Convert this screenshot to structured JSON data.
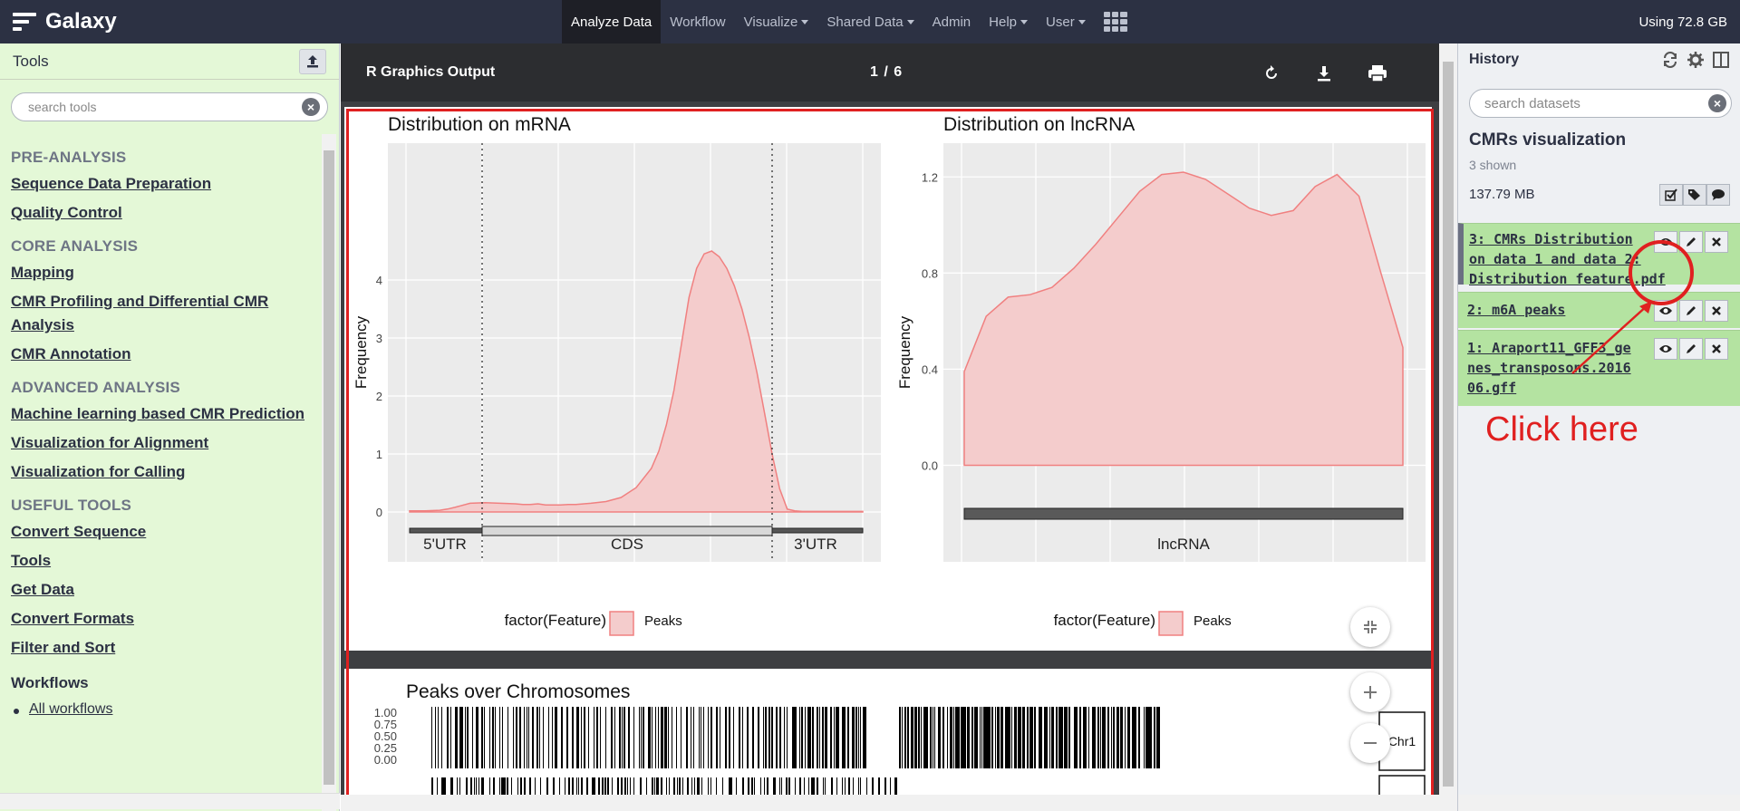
{
  "masthead": {
    "brand": "Galaxy",
    "nav": [
      {
        "label": "Analyze Data",
        "active": true,
        "dropdown": false
      },
      {
        "label": "Workflow",
        "active": false,
        "dropdown": false
      },
      {
        "label": "Visualize",
        "active": false,
        "dropdown": true
      },
      {
        "label": "Shared Data",
        "active": false,
        "dropdown": true
      },
      {
        "label": "Admin",
        "active": false,
        "dropdown": false
      },
      {
        "label": "Help",
        "active": false,
        "dropdown": true
      },
      {
        "label": "User",
        "active": false,
        "dropdown": true
      }
    ],
    "quota": "Using 72.8 GB"
  },
  "tool_panel": {
    "title": "Tools",
    "search_placeholder": "search tools",
    "sections": [
      {
        "title": "PRE-ANALYSIS",
        "tools": [
          "Sequence Data Preparation",
          "Quality Control"
        ]
      },
      {
        "title": "CORE ANALYSIS",
        "tools": [
          "Mapping",
          "CMR Profiling and Differential CMR Analysis",
          "CMR Annotation"
        ]
      },
      {
        "title": "ADVANCED ANALYSIS",
        "tools": [
          "Machine learning based CMR Prediction",
          "Visualization for Alignment",
          "Visualization for Calling"
        ]
      },
      {
        "title": "USEFUL TOOLS",
        "tools": [
          "Convert Sequence",
          "Tools",
          "Get Data",
          "Convert Formats",
          "Filter and Sort"
        ]
      }
    ],
    "workflows_title": "Workflows",
    "workflow_items": [
      "All workflows"
    ]
  },
  "viewer": {
    "title": "R Graphics Output",
    "page": "1 / 6",
    "icons": [
      "rotate-icon",
      "download-icon",
      "print-icon",
      "fit-page-icon",
      "zoom-in-icon",
      "zoom-out-icon"
    ]
  },
  "chart_data": [
    {
      "type": "area",
      "title": "Distribution on mRNA",
      "xlabel": "",
      "ylabel": "Frequency",
      "ylim": [
        0,
        4.6
      ],
      "yticks": [
        0,
        1,
        2,
        3,
        4
      ],
      "x": [
        0.0,
        0.1,
        0.2,
        0.25,
        0.3,
        0.4,
        0.5,
        0.6,
        0.7,
        0.75,
        0.8,
        0.85,
        0.9,
        0.95,
        1.0,
        1.05,
        1.1,
        1.2,
        1.3,
        1.4,
        1.5,
        1.6,
        1.65,
        1.7,
        1.75,
        1.8,
        1.85,
        1.9,
        1.95,
        2.0,
        2.05,
        2.1,
        2.15,
        2.2,
        2.25,
        2.3,
        2.35,
        2.4,
        2.45,
        2.5,
        2.55,
        2.6,
        2.65,
        2.7,
        2.75,
        2.8,
        2.85,
        2.9,
        2.95,
        3.0
      ],
      "series": [
        {
          "name": "Peaks",
          "values": [
            0.02,
            0.02,
            0.03,
            0.05,
            0.08,
            0.15,
            0.16,
            0.15,
            0.14,
            0.13,
            0.13,
            0.14,
            0.12,
            0.12,
            0.12,
            0.13,
            0.13,
            0.15,
            0.18,
            0.25,
            0.42,
            0.75,
            1.05,
            1.5,
            2.1,
            2.9,
            3.7,
            4.2,
            4.45,
            4.5,
            4.4,
            4.2,
            3.9,
            3.5,
            3.0,
            2.4,
            1.7,
            1.0,
            0.4,
            0.05,
            0.02,
            0.01,
            0.01,
            0.01,
            0.01,
            0.01,
            0.01,
            0.01,
            0.01,
            0.01
          ]
        }
      ],
      "feature_labels": [
        "5'UTR",
        "CDS",
        "3'UTR"
      ],
      "legend_title": "factor(Feature)",
      "legend_position": "bottom"
    },
    {
      "type": "area",
      "title": "Distribution on lncRNA",
      "xlabel": "",
      "ylabel": "Frequency",
      "ylim": [
        -0.1,
        1.25
      ],
      "yticks": [
        0.0,
        0.4,
        0.8,
        1.2
      ],
      "x": [
        0.0,
        0.05,
        0.1,
        0.15,
        0.2,
        0.25,
        0.3,
        0.35,
        0.4,
        0.45,
        0.5,
        0.55,
        0.6,
        0.65,
        0.7,
        0.75,
        0.8,
        0.85,
        0.9,
        0.95,
        1.0
      ],
      "series": [
        {
          "name": "Peaks",
          "values": [
            0.39,
            0.62,
            0.7,
            0.71,
            0.74,
            0.82,
            0.92,
            1.03,
            1.14,
            1.21,
            1.22,
            1.19,
            1.13,
            1.07,
            1.04,
            1.06,
            1.16,
            1.21,
            1.12,
            0.8,
            0.49
          ]
        }
      ],
      "feature_labels": [
        "lncRNA"
      ],
      "legend_title": "factor(Feature)",
      "legend_position": "bottom"
    },
    {
      "type": "bar",
      "title": "Peaks over Chromosomes",
      "yticks": [
        "1.00",
        "0.75",
        "0.50",
        "0.25",
        "0.00"
      ],
      "strip_labels": [
        "Chr1"
      ]
    }
  ],
  "history": {
    "title": "History",
    "search_placeholder": "search datasets",
    "name": "CMRs visualization",
    "shown": "3 shown",
    "size": "137.79 MB",
    "datasets": [
      {
        "hid": "3",
        "lines": [
          "3: CMRs Distribution",
          "on data 1 and data 2:",
          "Distribution feature.pdf"
        ]
      },
      {
        "hid": "2",
        "lines": [
          "2: m6A peaks"
        ]
      },
      {
        "hid": "1",
        "lines": [
          "1: Araport11_GFF3_ge",
          "nes_transposons.2016",
          "06.gff"
        ]
      }
    ],
    "annotation_text": "Click here"
  },
  "colors": {
    "masthead": "#2c3143",
    "tool_panel_bg": "#e4f8d7",
    "dataset_ok": "#b4e3a1",
    "density_fill": "#f4cccc",
    "density_line": "#f08080",
    "annotation_red": "#e02020"
  }
}
